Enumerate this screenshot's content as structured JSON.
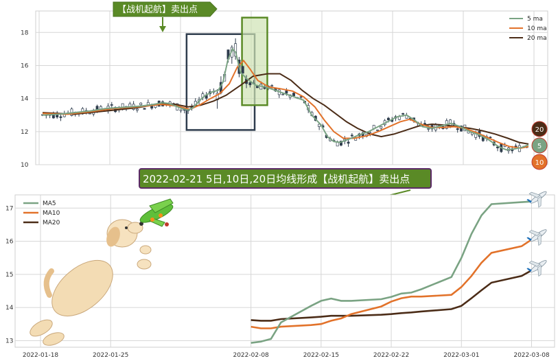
{
  "colors": {
    "ma5": "#7aa383",
    "ma10": "#e2722a",
    "ma20": "#4b2c17",
    "up_candle": "#ffffff",
    "down_candle": "#2e3c4d",
    "annotation_green": "#5a8a26",
    "annotation_purple": "#5b2a66",
    "highlight_box": "#2e3c4d",
    "highlight_fill": "#cfe3b4",
    "grid": "#d6d6d6",
    "axis": "#b8b8b8"
  },
  "annotations": {
    "top_label": "【战机起航】卖出点",
    "main_title": "2022-02-21 5日,10日,20日均线形成【战机起航】卖出点"
  },
  "decorations": {
    "dog_icon": "jumping-dog-holding-airplane",
    "plane_icon": "airplane-icon"
  },
  "chart_data": [
    {
      "type": "candlestick",
      "panel": "top",
      "ylim": [
        10,
        19.3
      ],
      "yticks": [
        "10",
        "12",
        "14",
        "16",
        "18"
      ],
      "legend_placement": "top-right",
      "grid": true,
      "series": [
        {
          "name": "5 ma",
          "color_key": "ma5"
        },
        {
          "name": "10 ma",
          "color_key": "ma10"
        },
        {
          "name": "20 ma",
          "color_key": "ma20"
        }
      ],
      "end_badges": [
        {
          "label": "20",
          "color_key": "ma20"
        },
        {
          "label": "5",
          "color_key": "ma5"
        },
        {
          "label": "10",
          "color_key": "ma10"
        }
      ],
      "ma5_path": [
        [
          0,
          13.0
        ],
        [
          20,
          13.05
        ],
        [
          40,
          13.15
        ],
        [
          60,
          13.25
        ],
        [
          80,
          13.4
        ],
        [
          95,
          13.45
        ],
        [
          110,
          13.5
        ],
        [
          125,
          13.55
        ],
        [
          140,
          13.65
        ],
        [
          152,
          13.75
        ],
        [
          160,
          13.7
        ],
        [
          168,
          13.55
        ],
        [
          176,
          13.4
        ],
        [
          184,
          13.3
        ],
        [
          190,
          13.45
        ],
        [
          200,
          13.95
        ],
        [
          206,
          14.2
        ],
        [
          214,
          14.4
        ],
        [
          222,
          14.5
        ],
        [
          228,
          15.0
        ],
        [
          234,
          16.3
        ],
        [
          240,
          17.0
        ],
        [
          244,
          16.8
        ],
        [
          250,
          15.6
        ],
        [
          258,
          15.2
        ],
        [
          270,
          14.8
        ],
        [
          282,
          14.7
        ],
        [
          294,
          14.5
        ],
        [
          306,
          14.3
        ],
        [
          318,
          14.1
        ],
        [
          330,
          13.9
        ],
        [
          340,
          13.0
        ],
        [
          352,
          12.4
        ],
        [
          360,
          11.7
        ],
        [
          368,
          11.4
        ],
        [
          376,
          11.35
        ],
        [
          390,
          11.6
        ],
        [
          400,
          11.8
        ],
        [
          412,
          12.0
        ],
        [
          424,
          12.3
        ],
        [
          436,
          12.6
        ],
        [
          448,
          12.9
        ],
        [
          460,
          13.0
        ],
        [
          470,
          12.7
        ],
        [
          480,
          12.3
        ],
        [
          492,
          12.2
        ],
        [
          504,
          12.35
        ],
        [
          516,
          12.5
        ],
        [
          528,
          12.3
        ],
        [
          540,
          12.0
        ],
        [
          552,
          11.8
        ],
        [
          564,
          11.5
        ],
        [
          576,
          11.1
        ],
        [
          586,
          10.9
        ],
        [
          596,
          10.95
        ],
        [
          606,
          11.05
        ],
        [
          614,
          11.2
        ]
      ],
      "ma10_path": [
        [
          0,
          13.1
        ],
        [
          30,
          13.05
        ],
        [
          60,
          13.2
        ],
        [
          90,
          13.4
        ],
        [
          120,
          13.5
        ],
        [
          150,
          13.65
        ],
        [
          170,
          13.55
        ],
        [
          186,
          13.35
        ],
        [
          198,
          13.6
        ],
        [
          212,
          14.0
        ],
        [
          224,
          14.3
        ],
        [
          236,
          14.9
        ],
        [
          246,
          15.9
        ],
        [
          254,
          16.3
        ],
        [
          262,
          15.8
        ],
        [
          272,
          15.1
        ],
        [
          286,
          14.7
        ],
        [
          300,
          14.6
        ],
        [
          316,
          14.45
        ],
        [
          330,
          14.1
        ],
        [
          344,
          13.5
        ],
        [
          356,
          12.7
        ],
        [
          368,
          12.0
        ],
        [
          380,
          11.6
        ],
        [
          394,
          11.6
        ],
        [
          410,
          11.75
        ],
        [
          424,
          12.0
        ],
        [
          438,
          12.3
        ],
        [
          452,
          12.6
        ],
        [
          464,
          12.75
        ],
        [
          478,
          12.45
        ],
        [
          492,
          12.25
        ],
        [
          506,
          12.25
        ],
        [
          520,
          12.3
        ],
        [
          534,
          12.2
        ],
        [
          548,
          11.95
        ],
        [
          562,
          11.65
        ],
        [
          576,
          11.35
        ],
        [
          590,
          11.1
        ],
        [
          604,
          11.0
        ],
        [
          614,
          11.1
        ]
      ],
      "ma20_path": [
        [
          0,
          13.15
        ],
        [
          40,
          13.05
        ],
        [
          80,
          13.25
        ],
        [
          120,
          13.45
        ],
        [
          150,
          13.7
        ],
        [
          168,
          13.65
        ],
        [
          184,
          13.5
        ],
        [
          200,
          13.6
        ],
        [
          216,
          13.85
        ],
        [
          232,
          14.2
        ],
        [
          250,
          14.8
        ],
        [
          266,
          15.35
        ],
        [
          284,
          15.5
        ],
        [
          300,
          15.5
        ],
        [
          314,
          15.1
        ],
        [
          328,
          14.5
        ],
        [
          342,
          14.0
        ],
        [
          356,
          13.6
        ],
        [
          370,
          13.1
        ],
        [
          384,
          12.6
        ],
        [
          398,
          12.2
        ],
        [
          414,
          11.85
        ],
        [
          428,
          11.7
        ],
        [
          444,
          11.85
        ],
        [
          460,
          12.1
        ],
        [
          476,
          12.35
        ],
        [
          492,
          12.45
        ],
        [
          508,
          12.4
        ],
        [
          524,
          12.3
        ],
        [
          540,
          12.2
        ],
        [
          556,
          12.05
        ],
        [
          572,
          11.85
        ],
        [
          588,
          11.6
        ],
        [
          602,
          11.35
        ],
        [
          614,
          11.25
        ]
      ],
      "highlights": [
        {
          "x_from": 182,
          "x_to": 268,
          "y_low": 12.1,
          "y_high": 17.9
        },
        {
          "x_from": 252,
          "x_to": 284,
          "y_low": 13.6,
          "y_high": 18.9
        }
      ]
    },
    {
      "type": "line",
      "panel": "bottom",
      "x_tick_labels": [
        "2022-01-18",
        "2022-01-25",
        "2022-02-08",
        "2022-02-15",
        "2022-02-22",
        "2022-03-01",
        "2022-03-08"
      ],
      "ylim": [
        12.8,
        17.4
      ],
      "yticks": [
        "13",
        "14",
        "15",
        "16",
        "17"
      ],
      "legend_placement": "top-left",
      "grid": true,
      "series": [
        {
          "name": "MA5",
          "color_key": "ma5",
          "x": [
            "2022-02-08",
            "2022-02-09",
            "2022-02-10",
            "2022-02-11",
            "2022-02-14",
            "2022-02-15",
            "2022-02-16",
            "2022-02-17",
            "2022-02-18",
            "2022-02-21",
            "2022-02-22",
            "2022-02-23",
            "2022-02-24",
            "2022-02-25",
            "2022-02-28",
            "2022-03-01",
            "2022-03-02",
            "2022-03-03",
            "2022-03-04",
            "2022-03-07",
            "2022-03-08"
          ],
          "values": [
            12.93,
            12.97,
            13.05,
            13.55,
            14.05,
            14.2,
            14.27,
            14.2,
            14.2,
            14.25,
            14.32,
            14.42,
            14.45,
            14.55,
            14.92,
            15.5,
            16.22,
            16.78,
            17.12,
            17.18,
            17.2
          ]
        },
        {
          "name": "MA10",
          "color_key": "ma10",
          "x": [
            "2022-02-08",
            "2022-02-09",
            "2022-02-10",
            "2022-02-11",
            "2022-02-14",
            "2022-02-15",
            "2022-02-16",
            "2022-02-17",
            "2022-02-18",
            "2022-02-21",
            "2022-02-22",
            "2022-02-23",
            "2022-02-24",
            "2022-02-25",
            "2022-02-28",
            "2022-03-01",
            "2022-03-02",
            "2022-03-03",
            "2022-03-04",
            "2022-03-07",
            "2022-03-08"
          ],
          "values": [
            13.42,
            13.37,
            13.37,
            13.42,
            13.47,
            13.5,
            13.6,
            13.67,
            13.8,
            14.03,
            14.18,
            14.28,
            14.33,
            14.33,
            14.38,
            14.62,
            14.95,
            15.35,
            15.65,
            15.85,
            16.05
          ]
        },
        {
          "name": "MA20",
          "color_key": "ma20",
          "x": [
            "2022-02-08",
            "2022-02-09",
            "2022-02-10",
            "2022-02-11",
            "2022-02-14",
            "2022-02-15",
            "2022-02-16",
            "2022-02-17",
            "2022-02-18",
            "2022-02-21",
            "2022-02-22",
            "2022-02-23",
            "2022-02-24",
            "2022-02-25",
            "2022-02-28",
            "2022-03-01",
            "2022-03-02",
            "2022-03-03",
            "2022-03-04",
            "2022-03-07",
            "2022-03-08"
          ],
          "values": [
            13.62,
            13.6,
            13.6,
            13.65,
            13.7,
            13.72,
            13.75,
            13.75,
            13.75,
            13.78,
            13.8,
            13.83,
            13.85,
            13.88,
            13.95,
            14.05,
            14.28,
            14.52,
            14.75,
            14.95,
            15.12
          ]
        }
      ]
    }
  ]
}
